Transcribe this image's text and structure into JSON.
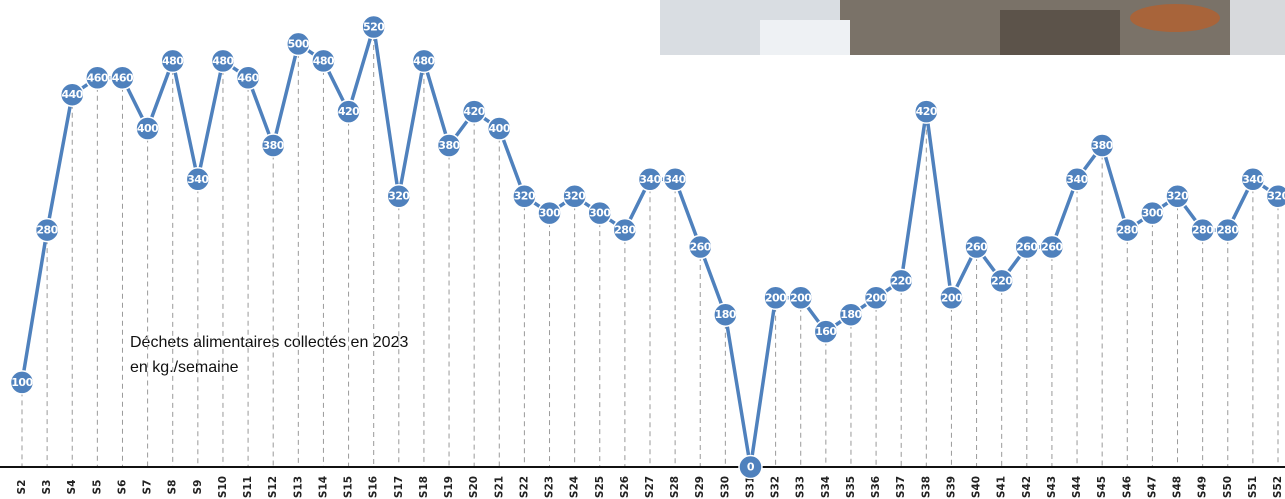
{
  "chart_data": {
    "type": "line",
    "annotation": [
      "Déchets alimentaires collectés en 2023",
      "en kg./semaine"
    ],
    "categories": [
      "S2",
      "S3",
      "S4",
      "S5",
      "S6",
      "S7",
      "S8",
      "S9",
      "S10",
      "S11",
      "S12",
      "S13",
      "S14",
      "S15",
      "S16",
      "S17",
      "S18",
      "S19",
      "S20",
      "S21",
      "S22",
      "S23",
      "S24",
      "S25",
      "S26",
      "S27",
      "S28",
      "S29",
      "S30",
      "S31",
      "S32",
      "S33",
      "S34",
      "S35",
      "S36",
      "S37",
      "S38",
      "S39",
      "S40",
      "S41",
      "S42",
      "S43",
      "S44",
      "S45",
      "S46",
      "S47",
      "S48",
      "S49",
      "S50",
      "S51",
      "S52"
    ],
    "values": [
      100,
      280,
      440,
      460,
      460,
      400,
      480,
      340,
      480,
      460,
      380,
      500,
      480,
      420,
      520,
      320,
      480,
      380,
      420,
      400,
      320,
      300,
      320,
      300,
      280,
      340,
      340,
      260,
      180,
      0,
      200,
      200,
      160,
      180,
      200,
      220,
      420,
      200,
      260,
      220,
      260,
      260,
      340,
      380,
      280,
      300,
      320,
      280,
      280,
      340,
      320
    ],
    "color": "#4f81bd",
    "ylim": [
      0,
      520
    ]
  }
}
